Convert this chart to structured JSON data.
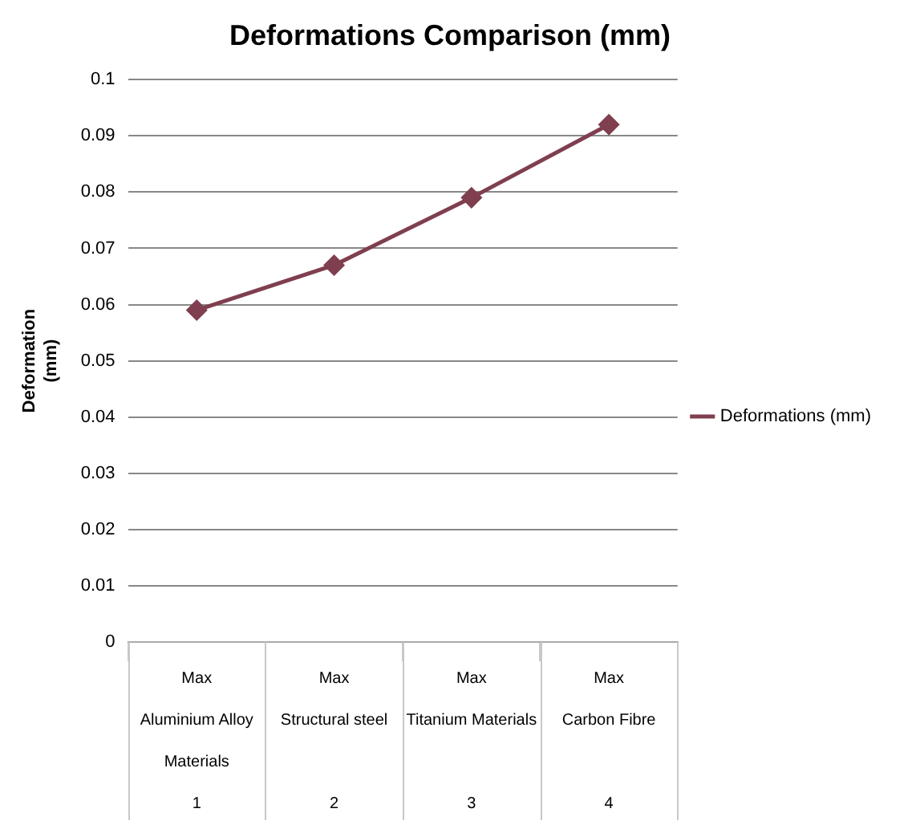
{
  "chart_data": {
    "type": "line",
    "title": "Deformations Comparison (mm)",
    "ylabel": "Deformation\n(mm)",
    "categories": [
      "Max\n\nAluminium Alloy\n\nMaterials\n\n1",
      "Max\n\nStructural steel\n\n\n\n2",
      "Max\n\nTitanium Materials\n\n\n\n3",
      "Max\n\nCarbon Fibre\n\n\n\n4"
    ],
    "series": [
      {
        "name": "Deformations (mm)",
        "color": "#7f3f4f",
        "values": [
          0.059,
          0.067,
          0.079,
          0.092
        ]
      }
    ],
    "ylim": [
      0,
      0.1
    ],
    "yticks": [
      0,
      0.01,
      0.02,
      0.03,
      0.04,
      0.05,
      0.06,
      0.07,
      0.08,
      0.09,
      0.1
    ],
    "grid": "y",
    "legend": "right",
    "marker": "diamond",
    "line_style": "solid"
  }
}
